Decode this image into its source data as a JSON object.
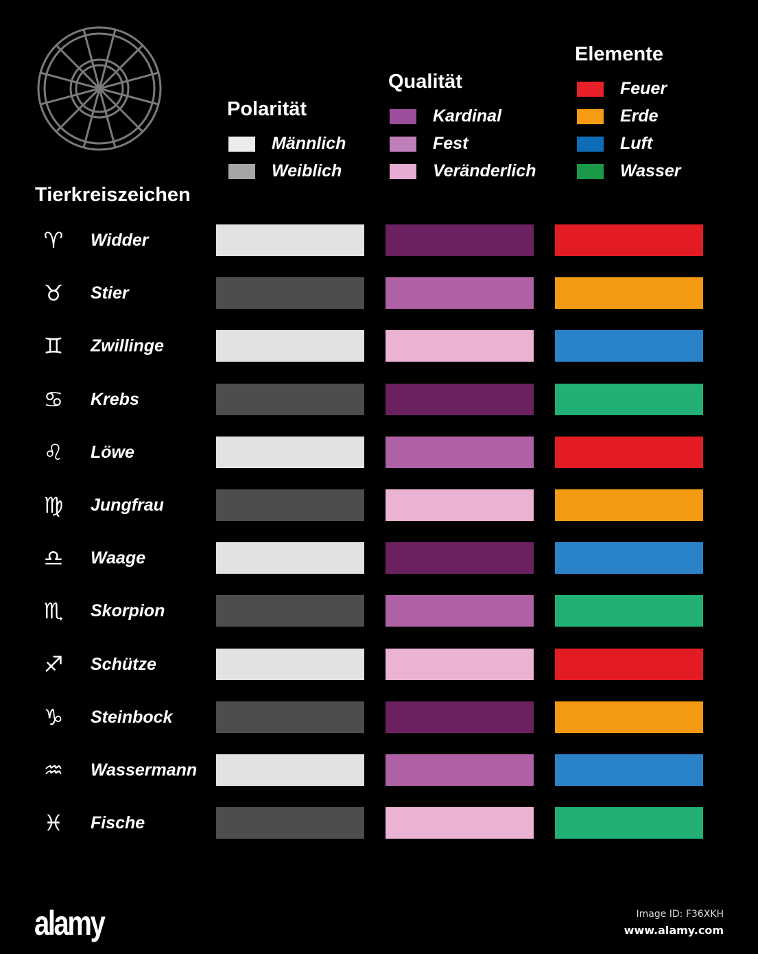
{
  "headings": {
    "signs": "Tierkreiszeichen",
    "polarity": "Polarität",
    "quality": "Qualität",
    "elements": "Elemente"
  },
  "legend": {
    "polarity": [
      {
        "label": "Männlich",
        "color": "#ececec"
      },
      {
        "label": "Weiblich",
        "color": "#a6a6a6"
      }
    ],
    "quality": [
      {
        "label": "Kardinal",
        "color": "#9b4f9b"
      },
      {
        "label": "Fest",
        "color": "#bf7fba"
      },
      {
        "label": "Veränderlich",
        "color": "#e6abd0"
      }
    ],
    "elements": [
      {
        "label": "Feuer",
        "color": "#e8202a"
      },
      {
        "label": "Erde",
        "color": "#f59c14"
      },
      {
        "label": "Luft",
        "color": "#0f6db8"
      },
      {
        "label": "Wasser",
        "color": "#1a9a48"
      }
    ]
  },
  "bar_colors": {
    "polarity": {
      "Männlich": "#e2e2e2",
      "Weiblich": "#4d4d4d"
    },
    "quality": {
      "Kardinal": "#6b2060",
      "Fest": "#b060a5",
      "Veränderlich": "#ecb2d3"
    },
    "elements": {
      "Feuer": "#e31b23",
      "Erde": "#f39a12",
      "Luft": "#2a83c8",
      "Wasser": "#22b074"
    }
  },
  "signs": [
    {
      "symbol": "♈︎",
      "icon": "aries-icon",
      "name": "Widder",
      "polarity": "Männlich",
      "quality": "Kardinal",
      "element": "Feuer"
    },
    {
      "symbol": "♉︎",
      "icon": "taurus-icon",
      "name": "Stier",
      "polarity": "Weiblich",
      "quality": "Fest",
      "element": "Erde"
    },
    {
      "symbol": "♊︎",
      "icon": "gemini-icon",
      "name": "Zwillinge",
      "polarity": "Männlich",
      "quality": "Veränderlich",
      "element": "Luft"
    },
    {
      "symbol": "♋︎",
      "icon": "cancer-icon",
      "name": "Krebs",
      "polarity": "Weiblich",
      "quality": "Kardinal",
      "element": "Wasser"
    },
    {
      "symbol": "♌︎",
      "icon": "leo-icon",
      "name": "Löwe",
      "polarity": "Männlich",
      "quality": "Fest",
      "element": "Feuer"
    },
    {
      "symbol": "♍︎",
      "icon": "virgo-icon",
      "name": "Jungfrau",
      "polarity": "Weiblich",
      "quality": "Veränderlich",
      "element": "Erde"
    },
    {
      "symbol": "♎︎",
      "icon": "libra-icon",
      "name": "Waage",
      "polarity": "Männlich",
      "quality": "Kardinal",
      "element": "Luft"
    },
    {
      "symbol": "♏︎",
      "icon": "scorpio-icon",
      "name": "Skorpion",
      "polarity": "Weiblich",
      "quality": "Fest",
      "element": "Wasser"
    },
    {
      "symbol": "♐︎",
      "icon": "sagittarius-icon",
      "name": "Schütze",
      "polarity": "Männlich",
      "quality": "Veränderlich",
      "element": "Feuer"
    },
    {
      "symbol": "♑︎",
      "icon": "capricorn-icon",
      "name": "Steinbock",
      "polarity": "Weiblich",
      "quality": "Kardinal",
      "element": "Erde"
    },
    {
      "symbol": "♒︎",
      "icon": "aquarius-icon",
      "name": "Wassermann",
      "polarity": "Männlich",
      "quality": "Fest",
      "element": "Luft"
    },
    {
      "symbol": "♓︎",
      "icon": "pisces-icon",
      "name": "Fische",
      "polarity": "Weiblich",
      "quality": "Veränderlich",
      "element": "Wasser"
    }
  ],
  "wheel": {
    "color": "#7a7a7a",
    "segments": 12
  },
  "footer": {
    "logo": "alamy",
    "image_id": "Image ID: F36XKH",
    "url": "www.alamy.com"
  }
}
